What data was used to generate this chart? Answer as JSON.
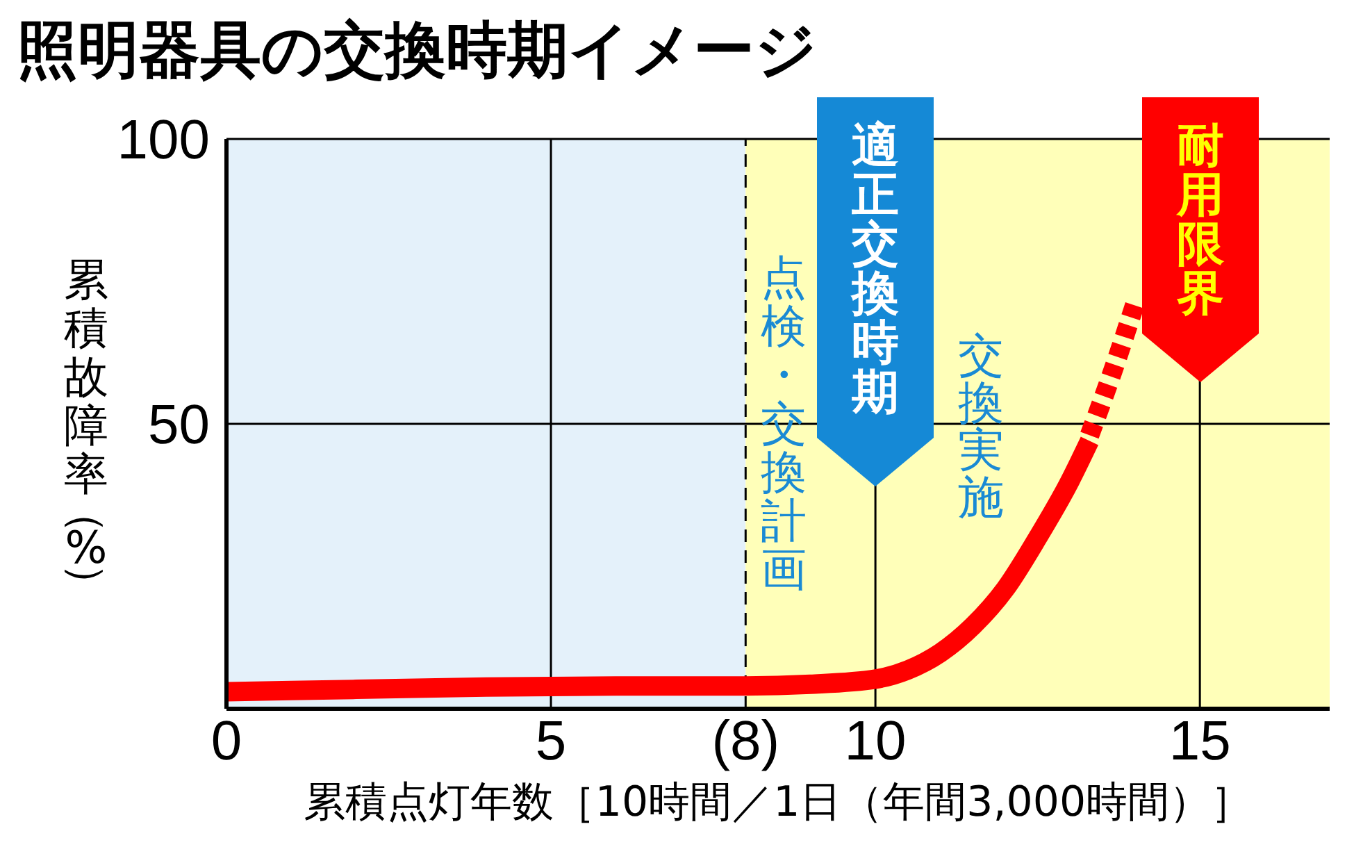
{
  "chart_data": {
    "type": "line",
    "title": "照明器具の交換時期イメージ",
    "xlabel": "累積点灯年数［10時間／1日（年間3,000時間）］",
    "ylabel": "累積故障率（%）",
    "xlim": [
      0,
      17
    ],
    "xticks": [
      0,
      5,
      10,
      15
    ],
    "ylim": [
      0,
      100
    ],
    "yticks": [
      50,
      100
    ],
    "grid": true,
    "series": [
      {
        "color": "#ff0000",
        "line_style": "solid",
        "x": [
          0,
          2,
          4,
          6,
          8,
          9,
          10,
          10.5,
          11,
          11.5,
          12,
          12.5,
          13,
          13.3
        ],
        "values": [
          3.0,
          3.4,
          3.8,
          4.0,
          4.0,
          4.3,
          5.2,
          6.8,
          9.8,
          14.5,
          21,
          30,
          40,
          47
        ]
      },
      {
        "color": "#ff0000",
        "line_style": "dashed",
        "x": [
          13.3,
          13.65,
          14.0
        ],
        "values": [
          48,
          59,
          71
        ]
      }
    ],
    "bands": [
      {
        "axis": "x",
        "from": 0,
        "to": 8,
        "color": "#e4f1fa"
      },
      {
        "axis": "x",
        "from": 8,
        "to": 17,
        "color": "#ffffb9"
      }
    ],
    "ref_lines": [
      {
        "axis": "x",
        "value": 8,
        "label": "(8)",
        "line_style": "dashed",
        "color": "#000000"
      }
    ],
    "annotations": [
      "適正交換時期",
      "耐用限界",
      "点検・交換計画",
      "交換実施"
    ]
  }
}
